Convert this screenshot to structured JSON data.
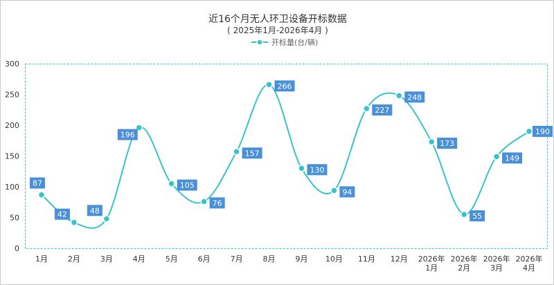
{
  "chart_data": {
    "type": "line",
    "title": "近16个月无人环卫设备开标数据",
    "subtitle": "( 2025年1月-2026年4月 )",
    "categories": [
      [
        "1月"
      ],
      [
        "2月"
      ],
      [
        "3月"
      ],
      [
        "4月"
      ],
      [
        "5月"
      ],
      [
        "6月"
      ],
      [
        "7月"
      ],
      [
        "8月"
      ],
      [
        "9月"
      ],
      [
        "10月"
      ],
      [
        "11月"
      ],
      [
        "12月"
      ],
      [
        "2026年",
        "1月"
      ],
      [
        "2026年",
        "2月"
      ],
      [
        "2026年",
        "3月"
      ],
      [
        "2026年",
        "4月"
      ]
    ],
    "series": [
      {
        "name": "开标量(台/辆)",
        "values": [
          87,
          42,
          48,
          196,
          105,
          76,
          157,
          266,
          130,
          94,
          227,
          248,
          173,
          55,
          149,
          190
        ]
      }
    ],
    "ylim": [
      0,
      300
    ],
    "yticks": [
      0,
      50,
      100,
      150,
      200,
      250,
      300
    ],
    "grid": false,
    "legend_position": "top-center",
    "smooth": true,
    "colors": {
      "line": "#36c3c9",
      "marker_fill": "#36c3c9",
      "marker_stroke": "#ffffff",
      "label_bg": "#4a90d9",
      "plot_border": "#36c3c9"
    }
  }
}
